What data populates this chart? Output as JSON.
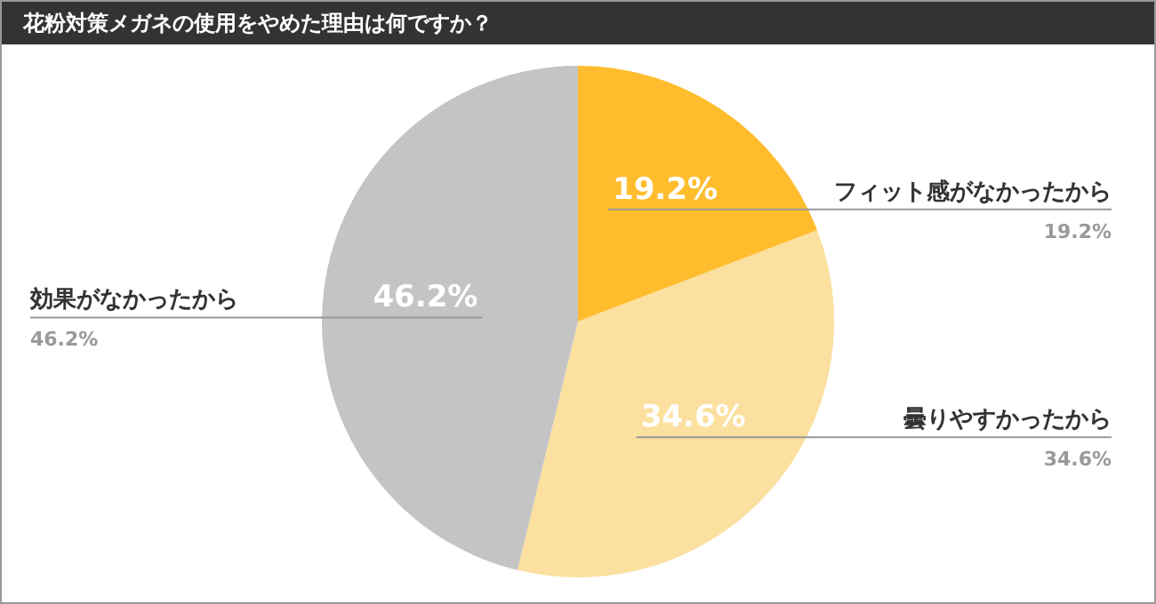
{
  "chart_data": {
    "type": "pie",
    "title": "花粉対策メガネの使用をやめた理由は何ですか？",
    "categories": [
      "フィット感がなかったから",
      "曇りやすかったから",
      "効果がなかったから"
    ],
    "values": [
      19.2,
      34.6,
      46.2
    ],
    "colors": [
      "#ffbd2e",
      "#fbe0a0",
      "#c4c4c4"
    ],
    "value_labels": [
      "19.2%",
      "34.6%",
      "46.2%"
    ],
    "legend": false
  }
}
